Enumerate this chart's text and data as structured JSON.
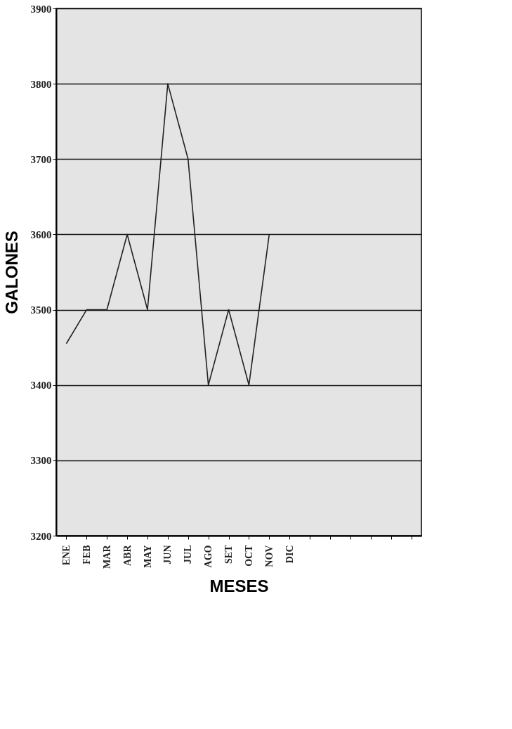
{
  "chart_data": {
    "type": "line",
    "xlabel": "MESES",
    "ylabel": "GALONES",
    "categories": [
      "ENE",
      "FEB",
      "MAR",
      "ABR",
      "MAY",
      "JUN",
      "JUL",
      "AGO",
      "SET",
      "OCT",
      "NOV",
      "DIC",
      null,
      null,
      null,
      null,
      null,
      null
    ],
    "series": [
      {
        "color": "#222222",
        "values": [
          3455,
          3500,
          3500,
          3600,
          3500,
          3800,
          3700,
          3400,
          3500,
          3400,
          3600,
          null,
          null,
          null,
          null,
          null,
          null,
          null
        ]
      }
    ],
    "ylim": [
      3200,
      3900
    ],
    "yticks": [
      3200,
      3300,
      3400,
      3500,
      3600,
      3700,
      3800,
      3900
    ],
    "grid": "y",
    "marker": "none",
    "line_style": "solid"
  }
}
